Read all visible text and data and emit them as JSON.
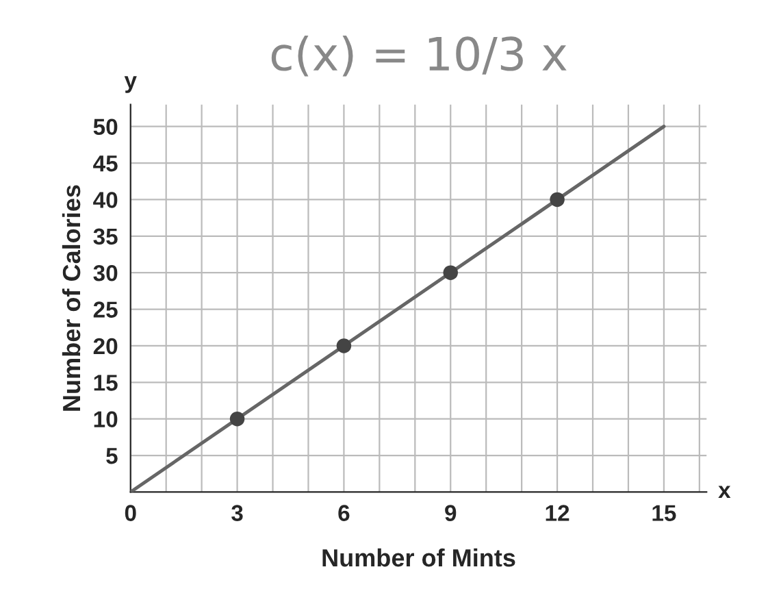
{
  "chart_data": {
    "type": "line",
    "title": "c(x) = 10/3 x",
    "xlabel": "Number of Mints",
    "ylabel": "Number of Calories",
    "annotations": [
      "x",
      "y"
    ],
    "xlim": [
      0,
      16.2
    ],
    "ylim": [
      0,
      53
    ],
    "xticks": [
      0,
      {
        "value": 1,
        "label": null
      },
      {
        "value": 2,
        "label": null
      },
      3,
      {
        "value": 4,
        "label": null
      },
      {
        "value": 5,
        "label": null
      },
      6,
      {
        "value": 7,
        "label": null
      },
      {
        "value": 8,
        "label": null
      },
      9,
      {
        "value": 10,
        "label": null
      },
      {
        "value": 11,
        "label": null
      },
      12,
      {
        "value": 13,
        "label": null
      },
      {
        "value": 14,
        "label": null
      },
      15,
      {
        "value": 16,
        "label": null
      }
    ],
    "yticks": [
      5,
      10,
      15,
      20,
      25,
      30,
      35,
      40,
      45,
      50
    ],
    "grid": true,
    "series": [
      {
        "type": "line",
        "x": [
          0,
          15
        ],
        "values": [
          0,
          50
        ],
        "color": "#666666",
        "marker": "none",
        "line_style": "solid"
      },
      {
        "type": "scatter",
        "x": [
          3,
          6,
          9,
          12
        ],
        "values": [
          10,
          20,
          30,
          40
        ],
        "color": "#444444",
        "marker": "circle"
      }
    ]
  }
}
